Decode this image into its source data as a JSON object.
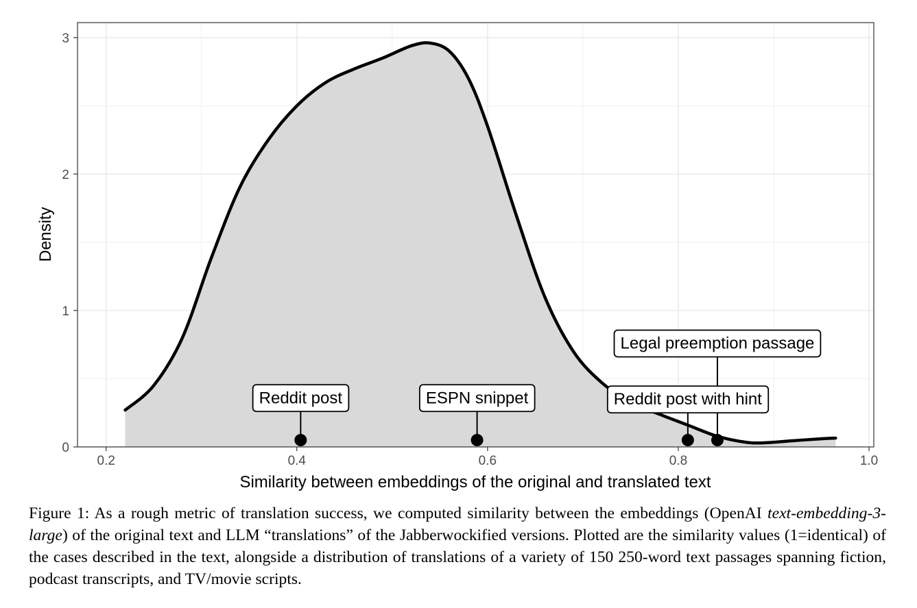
{
  "chart_data": {
    "type": "area",
    "xlabel": "Similarity between embeddings of the original and translated text",
    "ylabel": "Density",
    "xlim": [
      0.17,
      1.005
    ],
    "ylim": [
      0,
      3.11
    ],
    "x_ticks": [
      0.2,
      0.4,
      0.6,
      0.8,
      1.0
    ],
    "x_tick_labels": [
      "0.2",
      "0.4",
      "0.6",
      "0.8",
      "1.0"
    ],
    "y_ticks": [
      0,
      1,
      2,
      3
    ],
    "y_tick_labels": [
      "0",
      "1",
      "2",
      "3"
    ],
    "grid": true,
    "density_curve": {
      "x": [
        0.22,
        0.25,
        0.28,
        0.31,
        0.34,
        0.37,
        0.4,
        0.43,
        0.46,
        0.49,
        0.52,
        0.54,
        0.56,
        0.58,
        0.6,
        0.63,
        0.66,
        0.69,
        0.72,
        0.75,
        0.78,
        0.81,
        0.84,
        0.87,
        0.89,
        0.92,
        0.95,
        0.965
      ],
      "y": [
        0.27,
        0.45,
        0.8,
        1.38,
        1.9,
        2.25,
        2.5,
        2.67,
        2.77,
        2.85,
        2.94,
        2.96,
        2.9,
        2.7,
        2.35,
        1.7,
        1.1,
        0.7,
        0.47,
        0.33,
        0.24,
        0.16,
        0.08,
        0.035,
        0.03,
        0.045,
        0.06,
        0.065
      ]
    },
    "annotations": [
      {
        "label": "Reddit post",
        "x": 0.404,
        "y": 0.05,
        "label_x": 0.404,
        "label_y": 0.26
      },
      {
        "label": "ESPN snippet",
        "x": 0.589,
        "y": 0.05,
        "label_x": 0.589,
        "label_y": 0.26
      },
      {
        "label": "Reddit post with hint",
        "x": 0.81,
        "y": 0.05,
        "label_x": 0.81,
        "label_y": 0.25
      },
      {
        "label": "Legal preemption passage",
        "x": 0.841,
        "y": 0.05,
        "label_x": 0.841,
        "label_y": 0.66
      }
    ]
  },
  "caption": {
    "figure_label": "Figure 1:",
    "before_italic": "As a rough metric of translation success, we computed similarity between the embeddings (OpenAI",
    "italic_model": "text-embedding-3-large",
    "after_italic": ") of the original text and LLM “translations” of the Jabberwockified versions. Plotted are the similarity values (1=identical) of the cases described in the text, alongside a distribution of translations of a variety of 150 250-word text passages spanning fiction, podcast transcripts, and TV/movie scripts."
  },
  "colors": {
    "fill": "#d9d9d9",
    "line": "#000000",
    "grid": "#ebebeb",
    "panel_border": "#333333",
    "tick_text": "#4d4d4d"
  }
}
